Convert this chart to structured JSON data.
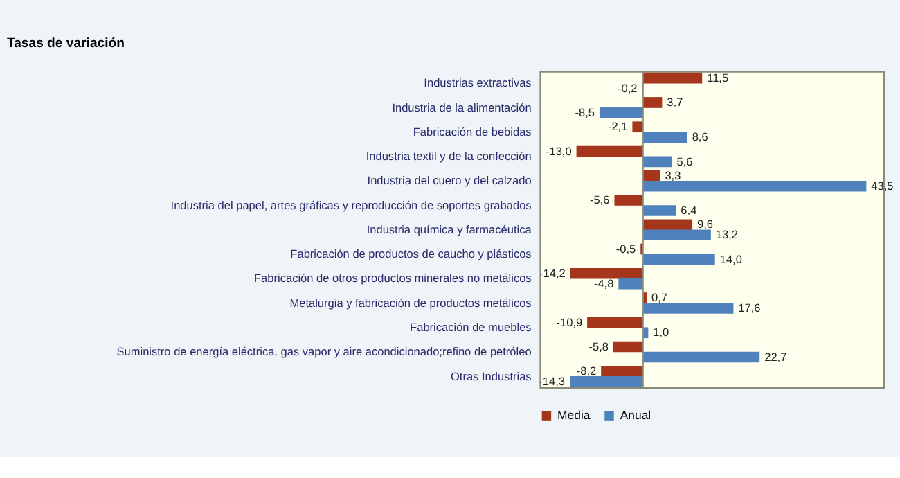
{
  "chart_data": {
    "type": "bar",
    "orientation": "horizontal",
    "title": "Tasas de variación",
    "categories": [
      "Industrias extractivas",
      "Industria de la alimentación",
      "Fabricación de bebidas",
      "Industria textil y de la confección",
      "Industria del cuero y del calzado",
      "Industria del papel, artes gráficas y reproducción de soportes grabados",
      "Industria química y farmacéutica",
      "Fabricación de productos de caucho y plásticos",
      "Fabricación de otros productos minerales no metálicos",
      "Metalurgia y fabricación de productos metálicos",
      "Fabricación de muebles",
      "Suministro de energía eléctrica, gas vapor y aire acondicionado;refino de petróleo",
      "Otras Industrias"
    ],
    "series": [
      {
        "name": "Media",
        "color": "#a5361c",
        "values": [
          11.5,
          3.7,
          -2.1,
          -13.0,
          3.3,
          -5.6,
          9.6,
          -0.5,
          -14.2,
          0.7,
          -10.9,
          -5.8,
          -8.2
        ],
        "value_labels": [
          "11,5",
          "3,7",
          "-2,1",
          "-13,0",
          "3,3",
          "-5,6",
          "9,6",
          "-0,5",
          "-14,2",
          "0,7",
          "-10,9",
          "-5,8",
          "-8,2"
        ]
      },
      {
        "name": "Anual",
        "color": "#4f81bd",
        "values": [
          -0.2,
          -8.5,
          8.6,
          5.6,
          43.5,
          6.4,
          13.2,
          14.0,
          -4.8,
          17.6,
          1.0,
          22.7,
          -14.3
        ],
        "value_labels": [
          "-0,2",
          "-8,5",
          "8,6",
          "5,6",
          "43,5",
          "6,4",
          "13,2",
          "14,0",
          "-4,8",
          "17,6",
          "1,0",
          "22,7",
          "-14,3"
        ]
      }
    ],
    "xlim": [
      -20,
      47
    ],
    "tick_labels": "y",
    "legend": "bottom"
  }
}
